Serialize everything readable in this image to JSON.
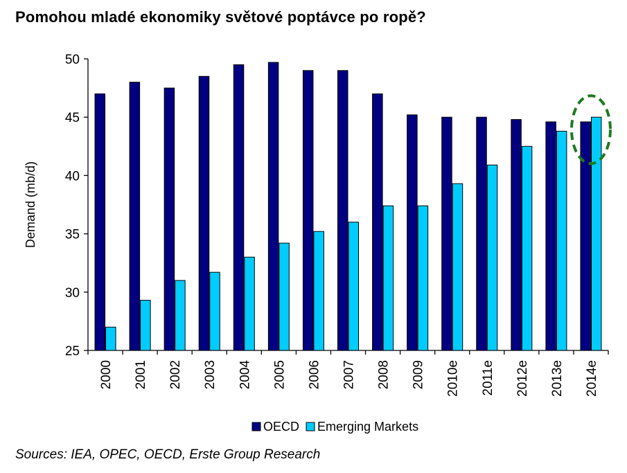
{
  "title": "Pomohou mladé ekonomiky světové poptávce po ropě?",
  "source": "Sources: IEA, OPEC, OECD, Erste Group Research",
  "colors": {
    "oecd": "#000080",
    "emerging": "#00ccff",
    "highlight": "#1f7a1f"
  },
  "chart_data": {
    "type": "bar",
    "title": "Pomohou mladé ekonomiky světové poptávce po ropě?",
    "xlabel": "",
    "ylabel": "Demand (mb/d)",
    "ylim": [
      25,
      50
    ],
    "yticks": [
      25,
      30,
      35,
      40,
      45,
      50
    ],
    "grid": false,
    "legend_position": "bottom",
    "categories": [
      "2000",
      "2001",
      "2002",
      "2003",
      "2004",
      "2005",
      "2006",
      "2007",
      "2008",
      "2009",
      "2010e",
      "2011e",
      "2012e",
      "2013e",
      "2014e"
    ],
    "series": [
      {
        "name": "OECD",
        "values": [
          47.0,
          48.0,
          47.5,
          48.5,
          49.5,
          49.7,
          49.0,
          49.0,
          47.0,
          45.2,
          45.0,
          45.0,
          44.8,
          44.6,
          44.6
        ]
      },
      {
        "name": "Emerging Markets",
        "values": [
          27.0,
          29.3,
          31.0,
          31.7,
          33.0,
          34.2,
          35.2,
          36.0,
          37.4,
          37.4,
          39.3,
          40.9,
          42.5,
          43.8,
          45.0
        ]
      }
    ],
    "annotation": {
      "type": "dashed-ellipse",
      "category": "2014e"
    }
  }
}
